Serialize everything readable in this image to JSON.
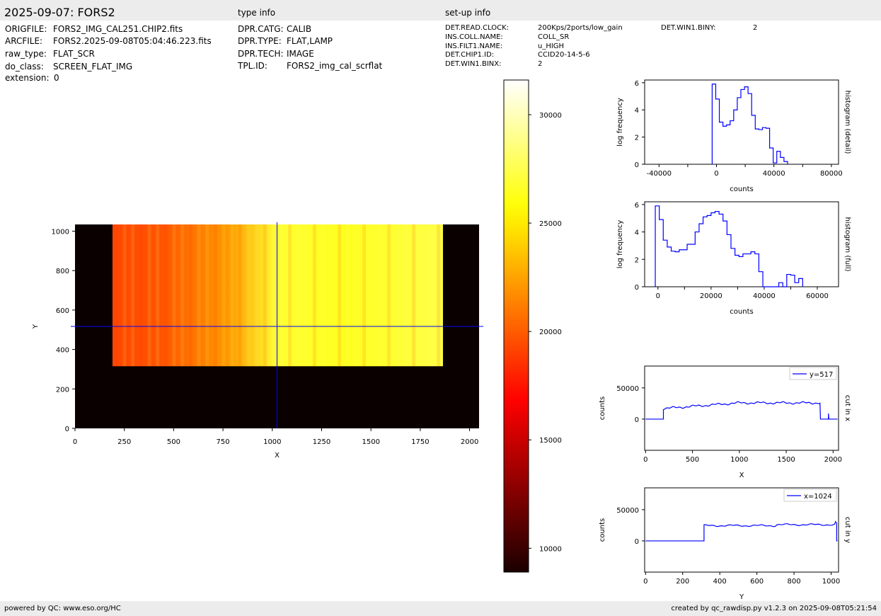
{
  "header": {
    "title": "2025-09-07: FORS2",
    "type_info_heading": "type info",
    "setup_info_heading": "set-up info"
  },
  "file_info": [
    {
      "key": "ORIGFILE:",
      "value": "FORS2_IMG_CAL251.CHIP2.fits"
    },
    {
      "key": "ARCFILE:",
      "value": "FORS2.2025-09-08T05:04:46.223.fits"
    },
    {
      "key": "raw_type:",
      "value": "FLAT_SCR"
    },
    {
      "key": "do_class:",
      "value": "SCREEN_FLAT_IMG"
    },
    {
      "key": "extension:",
      "value": "0"
    }
  ],
  "type_info": [
    {
      "key": "DPR.CATG:",
      "value": "CALIB"
    },
    {
      "key": "DPR.TYPE:",
      "value": "FLAT,LAMP"
    },
    {
      "key": "DPR.TECH:",
      "value": "IMAGE"
    },
    {
      "key": "TPL.ID:",
      "value": "FORS2_img_cal_scrflat"
    }
  ],
  "setup_info": [
    {
      "key": "DET.READ.CLOCK:",
      "value": "200Kps/2ports/low_gain"
    },
    {
      "key": "INS.COLL.NAME:",
      "value": "COLL_SR"
    },
    {
      "key": "INS.FILT1.NAME:",
      "value": "u_HIGH"
    },
    {
      "key": "DET.CHIP1.ID:",
      "value": "CCID20-14-5-6"
    },
    {
      "key": "DET.WIN1.BINX:",
      "value": "2"
    }
  ],
  "setup_info_extra": {
    "key": "DET.WIN1.BINY:",
    "value": "2"
  },
  "footer": {
    "left": "powered by QC: www.eso.org/HC",
    "right": "created by qc_rawdisp.py v1.2.3 on 2025-09-08T05:21:54"
  },
  "colors": {
    "accent": "#0000ff",
    "band": "#ececec",
    "colormap": "hot",
    "background_frame": "#0a0000"
  },
  "chart_data": [
    {
      "type": "heatmap",
      "name": "image",
      "xlabel": "X",
      "ylabel": "Y",
      "xlim": [
        0,
        2048
      ],
      "ylim": [
        0,
        1034
      ],
      "xticks": [
        "0",
        "250",
        "500",
        "750",
        "1000",
        "1250",
        "1500",
        "1750",
        "2000"
      ],
      "yticks": [
        "0",
        "200",
        "400",
        "600",
        "800",
        "1000"
      ],
      "illuminated_region": {
        "x": [
          190,
          1865
        ],
        "y": [
          315,
          1034
        ]
      },
      "crosshair": {
        "x": 1024,
        "y": 517
      },
      "colorbar": {
        "range": [
          8900,
          31600
        ],
        "ticks": [
          "10000",
          "15000",
          "20000",
          "25000",
          "30000"
        ]
      }
    },
    {
      "type": "line",
      "name": "histogram (detail)",
      "side_label": "histogram (detail)",
      "xlabel": "counts",
      "ylabel": "log frequency",
      "xlim": [
        -50000,
        85000
      ],
      "ylim": [
        0,
        6.2
      ],
      "xticks": [
        "-40000",
        "0",
        "40000",
        "80000"
      ],
      "yticks": [
        "0",
        "2",
        "4",
        "6"
      ],
      "bin_width": 2500,
      "bin_edges_start": -3000,
      "values": [
        5.9,
        4.8,
        3.1,
        2.8,
        2.9,
        3.2,
        4.0,
        4.9,
        5.5,
        5.7,
        5.2,
        3.6,
        2.6,
        2.55,
        2.7,
        2.65,
        1.2,
        0.1,
        0.95,
        0.5,
        0.2
      ]
    },
    {
      "type": "line",
      "name": "histogram (full)",
      "side_label": "histogram (full)",
      "xlabel": "counts",
      "ylabel": "log frequency",
      "xlim": [
        -5000,
        68000
      ],
      "ylim": [
        0,
        6.2
      ],
      "xticks": [
        "0",
        "20000",
        "40000",
        "60000"
      ],
      "yticks": [
        "0",
        "2",
        "4",
        "6"
      ],
      "bin_width": 1500,
      "bin_edges_start": -1000,
      "values": [
        5.9,
        4.9,
        3.4,
        2.9,
        2.6,
        2.55,
        2.7,
        2.7,
        3.1,
        3.1,
        4.0,
        4.6,
        5.1,
        5.2,
        5.4,
        5.5,
        5.3,
        4.8,
        3.8,
        2.8,
        2.3,
        2.2,
        2.4,
        2.4,
        2.55,
        2.4,
        1.1,
        0,
        0,
        0,
        0,
        0.3,
        0,
        0.9,
        0.85,
        0.3,
        0.6
      ]
    },
    {
      "type": "line",
      "name": "cut in x",
      "side_label": "cut in x",
      "xlabel": "X",
      "ylabel": "counts",
      "xlim": [
        -10,
        2058
      ],
      "ylim": [
        -50000,
        85000
      ],
      "xticks": [
        "0",
        "500",
        "1000",
        "1500",
        "2000"
      ],
      "yticks": [
        "0",
        "50000"
      ],
      "series": [
        {
          "name": "y=517"
        }
      ],
      "profile": {
        "edge_left": 190,
        "edge_right": 1865,
        "start_level": 17000,
        "end_level": 26000
      }
    },
    {
      "type": "line",
      "name": "cut in y",
      "side_label": "cut in y",
      "xlabel": "Y",
      "ylabel": "counts",
      "xlim": [
        -5,
        1040
      ],
      "ylim": [
        -50000,
        85000
      ],
      "xticks": [
        "0",
        "200",
        "400",
        "600",
        "800",
        "1000"
      ],
      "yticks": [
        "0",
        "50000"
      ],
      "series": [
        {
          "name": "x=1024"
        }
      ],
      "profile": {
        "edge": 315,
        "level": 24500
      }
    }
  ]
}
